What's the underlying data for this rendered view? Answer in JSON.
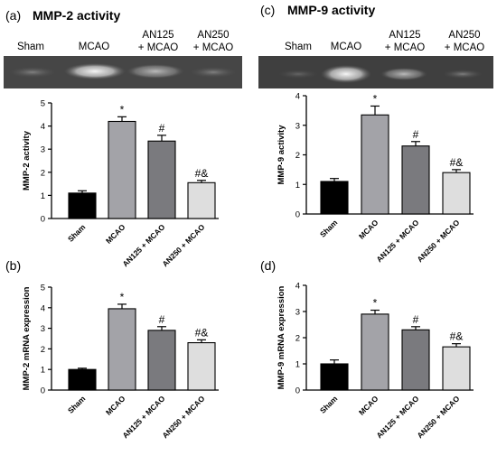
{
  "panels": [
    {
      "id": "a",
      "letter": "(a)",
      "title": "MMP-2 activity",
      "lanes": [
        "Sham",
        "MCAO",
        "AN125",
        "+ MCAO",
        "AN250",
        "+ MCAO"
      ]
    },
    {
      "id": "c",
      "letter": "(c)",
      "title": "MMP-9 activity",
      "lanes": [
        "Sham",
        "MCAO",
        "AN125",
        "+ MCAO",
        "AN250",
        "+ MCAO"
      ]
    },
    {
      "id": "b",
      "letter": "(b)"
    },
    {
      "id": "d",
      "letter": "(d)"
    }
  ],
  "colors": {
    "sham": "#000000",
    "mcao": "#a3a3a8",
    "an125": "#7a7a7e",
    "an250": "#dedede",
    "axis": "#000000"
  },
  "chart_data": [
    {
      "panel": "a",
      "type": "bar",
      "categories": [
        "Sham",
        "MCAO",
        "AN125 + MCAO",
        "AN250 + MCAO"
      ],
      "values": [
        1.1,
        4.2,
        3.35,
        1.55
      ],
      "errors": [
        0.1,
        0.2,
        0.25,
        0.1
      ],
      "annotations": [
        "",
        "*",
        "#",
        "#&"
      ],
      "ylabel": "MMP-2 activity",
      "ylim": [
        0,
        5
      ],
      "yticks": [
        0,
        1,
        2,
        3,
        4,
        5
      ]
    },
    {
      "panel": "c",
      "type": "bar",
      "categories": [
        "Sham",
        "MCAO",
        "AN125 + MCAO",
        "AN250 + MCAO"
      ],
      "values": [
        1.1,
        3.35,
        2.3,
        1.4
      ],
      "errors": [
        0.1,
        0.3,
        0.15,
        0.1
      ],
      "annotations": [
        "",
        "*",
        "#",
        "#&"
      ],
      "ylabel": "MMP-9 activity",
      "ylim": [
        0,
        4
      ],
      "yticks": [
        0,
        1,
        2,
        3,
        4
      ]
    },
    {
      "panel": "b",
      "type": "bar",
      "categories": [
        "Sham",
        "MCAO",
        "AN125 + MCAO",
        "AN250 + MCAO"
      ],
      "values": [
        1.0,
        3.95,
        2.9,
        2.3
      ],
      "errors": [
        0.06,
        0.22,
        0.18,
        0.14
      ],
      "annotations": [
        "",
        "*",
        "#",
        "#&"
      ],
      "ylabel": "MMP-2 mRNA expression",
      "ylim": [
        0,
        5
      ],
      "yticks": [
        0,
        1,
        2,
        3,
        4,
        5
      ]
    },
    {
      "panel": "d",
      "type": "bar",
      "categories": [
        "Sham",
        "MCAO",
        "AN125 + MCAO",
        "AN250 + MCAO"
      ],
      "values": [
        1.0,
        2.9,
        2.3,
        1.65
      ],
      "errors": [
        0.15,
        0.15,
        0.12,
        0.12
      ],
      "annotations": [
        "",
        "*",
        "#",
        "#&"
      ],
      "ylabel": "MMP-9 mRNA expression",
      "ylim": [
        0,
        4
      ],
      "yticks": [
        0,
        1,
        2,
        3,
        4
      ]
    }
  ]
}
